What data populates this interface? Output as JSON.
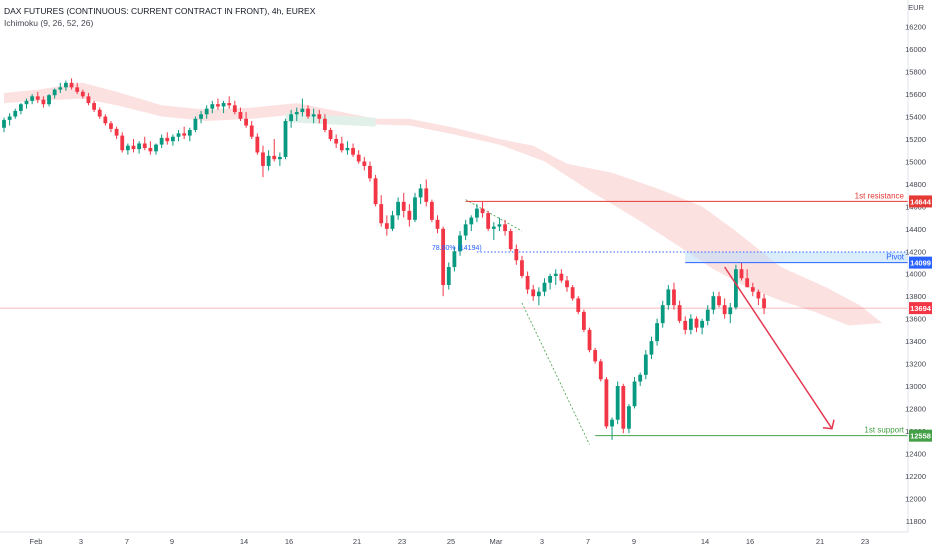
{
  "header": {
    "title": "DAX FUTURES (CONTINUOUS: CURRENT CONTRACT IN FRONT), 4h, EUREX",
    "indicator": "Ichimoku (9, 26, 52, 26)"
  },
  "currency": "EUR",
  "colors": {
    "up": "#26a69a",
    "up_candle": "#089981",
    "down": "#f23645",
    "cloud": "#fbdcdc",
    "cloud_green": "#e1f1ea",
    "resistance": "#e53935",
    "pivot": "#2962ff",
    "support": "#43a047",
    "current": "#f23645",
    "arrow": "#e53950"
  },
  "chart_data": {
    "type": "candlestick",
    "timeframe": "4h",
    "y_ticks": [
      11800,
      12000,
      12200,
      12400,
      12600,
      12800,
      13000,
      13200,
      13400,
      13600,
      13800,
      14000,
      14200,
      14400,
      14600,
      14800,
      15000,
      15200,
      15400,
      15600,
      15800,
      16000,
      16200
    ],
    "ylim": [
      11700,
      16420
    ],
    "x_ticks": [
      "Feb",
      "3",
      "7",
      "9",
      "14",
      "16",
      "21",
      "23",
      "25",
      "Mar",
      "3",
      "7",
      "9",
      "14",
      "16",
      "21",
      "23"
    ],
    "levels": [
      {
        "name": "1st resistance",
        "price": 14644,
        "label": "14644",
        "color": "#e53935",
        "style": "solid"
      },
      {
        "name": "Pivot",
        "price": 14099,
        "label": "14099",
        "color": "#2962ff",
        "style": "dotted"
      },
      {
        "name": "1st support",
        "price": 12558,
        "label": "12558",
        "color": "#43a047",
        "style": "solid"
      },
      {
        "name": "",
        "price": 13694,
        "label": "13694",
        "color": "#f23645",
        "style": "current"
      }
    ],
    "fib_label": "78.60% (14194)",
    "fib_price": 14194,
    "candles": [
      [
        15300,
        15390,
        15260,
        15370
      ],
      [
        15370,
        15430,
        15320,
        15400
      ],
      [
        15400,
        15470,
        15380,
        15450
      ],
      [
        15450,
        15520,
        15420,
        15510
      ],
      [
        15510,
        15560,
        15470,
        15540
      ],
      [
        15540,
        15600,
        15510,
        15580
      ],
      [
        15580,
        15620,
        15520,
        15550
      ],
      [
        15550,
        15580,
        15480,
        15510
      ],
      [
        15510,
        15600,
        15490,
        15590
      ],
      [
        15590,
        15650,
        15560,
        15640
      ],
      [
        15640,
        15700,
        15610,
        15660
      ],
      [
        15660,
        15720,
        15630,
        15700
      ],
      [
        15700,
        15740,
        15640,
        15660
      ],
      [
        15660,
        15700,
        15600,
        15620
      ],
      [
        15620,
        15640,
        15560,
        15580
      ],
      [
        15580,
        15610,
        15500,
        15520
      ],
      [
        15520,
        15540,
        15440,
        15460
      ],
      [
        15460,
        15480,
        15380,
        15400
      ],
      [
        15400,
        15420,
        15320,
        15340
      ],
      [
        15340,
        15360,
        15260,
        15290
      ],
      [
        15290,
        15310,
        15200,
        15230
      ],
      [
        15230,
        15260,
        15080,
        15100
      ],
      [
        15100,
        15160,
        15060,
        15140
      ],
      [
        15140,
        15200,
        15080,
        15110
      ],
      [
        15110,
        15180,
        15070,
        15160
      ],
      [
        15160,
        15220,
        15100,
        15120
      ],
      [
        15120,
        15180,
        15060,
        15090
      ],
      [
        15090,
        15160,
        15060,
        15150
      ],
      [
        15150,
        15240,
        15120,
        15210
      ],
      [
        15210,
        15260,
        15150,
        15180
      ],
      [
        15180,
        15240,
        15140,
        15220
      ],
      [
        15220,
        15280,
        15180,
        15250
      ],
      [
        15250,
        15310,
        15200,
        15230
      ],
      [
        15230,
        15300,
        15180,
        15280
      ],
      [
        15280,
        15400,
        15260,
        15380
      ],
      [
        15380,
        15450,
        15340,
        15420
      ],
      [
        15420,
        15500,
        15380,
        15470
      ],
      [
        15470,
        15540,
        15430,
        15510
      ],
      [
        15510,
        15560,
        15460,
        15490
      ],
      [
        15490,
        15540,
        15430,
        15520
      ],
      [
        15520,
        15580,
        15470,
        15500
      ],
      [
        15500,
        15540,
        15420,
        15440
      ],
      [
        15440,
        15480,
        15360,
        15380
      ],
      [
        15380,
        15440,
        15300,
        15320
      ],
      [
        15320,
        15360,
        15200,
        15220
      ],
      [
        15220,
        15250,
        15060,
        15080
      ],
      [
        15080,
        15140,
        14860,
        14960
      ],
      [
        14960,
        15100,
        14920,
        15050
      ],
      [
        15050,
        15200,
        15000,
        15020
      ],
      [
        15020,
        15080,
        14960,
        15040
      ],
      [
        15040,
        15380,
        15020,
        15360
      ],
      [
        15360,
        15460,
        15300,
        15420
      ],
      [
        15420,
        15480,
        15360,
        15440
      ],
      [
        15440,
        15560,
        15400,
        15470
      ],
      [
        15470,
        15500,
        15380,
        15400
      ],
      [
        15400,
        15470,
        15340,
        15420
      ],
      [
        15420,
        15460,
        15340,
        15380
      ],
      [
        15380,
        15420,
        15260,
        15280
      ],
      [
        15280,
        15300,
        15180,
        15200
      ],
      [
        15200,
        15240,
        15120,
        15160
      ],
      [
        15160,
        15220,
        15080,
        15100
      ],
      [
        15100,
        15180,
        15060,
        15120
      ],
      [
        15120,
        15160,
        15040,
        15060
      ],
      [
        15060,
        15100,
        14980,
        15000
      ],
      [
        15000,
        15040,
        14920,
        14960
      ],
      [
        14960,
        15000,
        14820,
        14850
      ],
      [
        14850,
        14880,
        14600,
        14620
      ],
      [
        14620,
        14700,
        14420,
        14450
      ],
      [
        14450,
        14520,
        14340,
        14400
      ],
      [
        14400,
        14560,
        14380,
        14520
      ],
      [
        14520,
        14680,
        14480,
        14640
      ],
      [
        14640,
        14720,
        14500,
        14560
      ],
      [
        14560,
        14620,
        14420,
        14480
      ],
      [
        14480,
        14720,
        14460,
        14680
      ],
      [
        14680,
        14800,
        14620,
        14760
      ],
      [
        14760,
        14840,
        14600,
        14640
      ],
      [
        14640,
        14660,
        14460,
        14480
      ],
      [
        14480,
        14520,
        14360,
        14400
      ],
      [
        14400,
        14420,
        13800,
        13900
      ],
      [
        13900,
        14100,
        13860,
        14060
      ],
      [
        14060,
        14240,
        14020,
        14200
      ],
      [
        14200,
        14380,
        14160,
        14340
      ],
      [
        14340,
        14480,
        14300,
        14440
      ],
      [
        14440,
        14520,
        14380,
        14500
      ],
      [
        14500,
        14620,
        14460,
        14580
      ],
      [
        14580,
        14640,
        14500,
        14540
      ],
      [
        14540,
        14560,
        14380,
        14400
      ],
      [
        14400,
        14460,
        14300,
        14420
      ],
      [
        14420,
        14500,
        14380,
        14440
      ],
      [
        14440,
        14480,
        14340,
        14380
      ],
      [
        14380,
        14400,
        14200,
        14220
      ],
      [
        14220,
        14260,
        14080,
        14120
      ],
      [
        14120,
        14160,
        13960,
        13980
      ],
      [
        13980,
        14020,
        13820,
        13860
      ],
      [
        13860,
        13900,
        13760,
        13800
      ],
      [
        13800,
        13880,
        13720,
        13840
      ],
      [
        13840,
        13960,
        13800,
        13920
      ],
      [
        13920,
        14000,
        13860,
        13980
      ],
      [
        13980,
        14040,
        13900,
        14000
      ],
      [
        14000,
        14040,
        13920,
        13940
      ],
      [
        13940,
        13980,
        13840,
        13880
      ],
      [
        13880,
        13900,
        13760,
        13780
      ],
      [
        13780,
        13800,
        13640,
        13660
      ],
      [
        13660,
        13680,
        13480,
        13500
      ],
      [
        13500,
        13520,
        13300,
        13320
      ],
      [
        13320,
        13340,
        13200,
        13220
      ],
      [
        13220,
        13240,
        13040,
        13060
      ],
      [
        13060,
        13080,
        12620,
        12640
      ],
      [
        12640,
        12720,
        12520,
        12700
      ],
      [
        12700,
        13040,
        12660,
        13000
      ],
      [
        13000,
        13020,
        12580,
        12620
      ],
      [
        12620,
        12840,
        12580,
        12820
      ],
      [
        12820,
        13080,
        12800,
        13040
      ],
      [
        13040,
        13120,
        13000,
        13100
      ],
      [
        13100,
        13320,
        13060,
        13280
      ],
      [
        13280,
        13440,
        13240,
        13400
      ],
      [
        13400,
        13600,
        13360,
        13560
      ],
      [
        13560,
        13760,
        13520,
        13720
      ],
      [
        13720,
        13900,
        13680,
        13860
      ],
      [
        13860,
        13920,
        13680,
        13720
      ],
      [
        13720,
        13760,
        13560,
        13580
      ],
      [
        13580,
        13620,
        13460,
        13500
      ],
      [
        13500,
        13640,
        13460,
        13600
      ],
      [
        13600,
        13620,
        13480,
        13520
      ],
      [
        13520,
        13600,
        13460,
        13580
      ],
      [
        13580,
        13720,
        13540,
        13680
      ],
      [
        13680,
        13840,
        13640,
        13800
      ],
      [
        13800,
        13840,
        13700,
        13720
      ],
      [
        13720,
        13780,
        13600,
        13640
      ],
      [
        13640,
        13740,
        13560,
        13700
      ],
      [
        13700,
        14080,
        13680,
        14040
      ],
      [
        14040,
        14100,
        13940,
        13960
      ],
      [
        13960,
        14040,
        13880,
        13880
      ],
      [
        13880,
        13920,
        13800,
        13840
      ],
      [
        13840,
        13860,
        13720,
        13780
      ],
      [
        13780,
        13820,
        13640,
        13694
      ]
    ]
  }
}
